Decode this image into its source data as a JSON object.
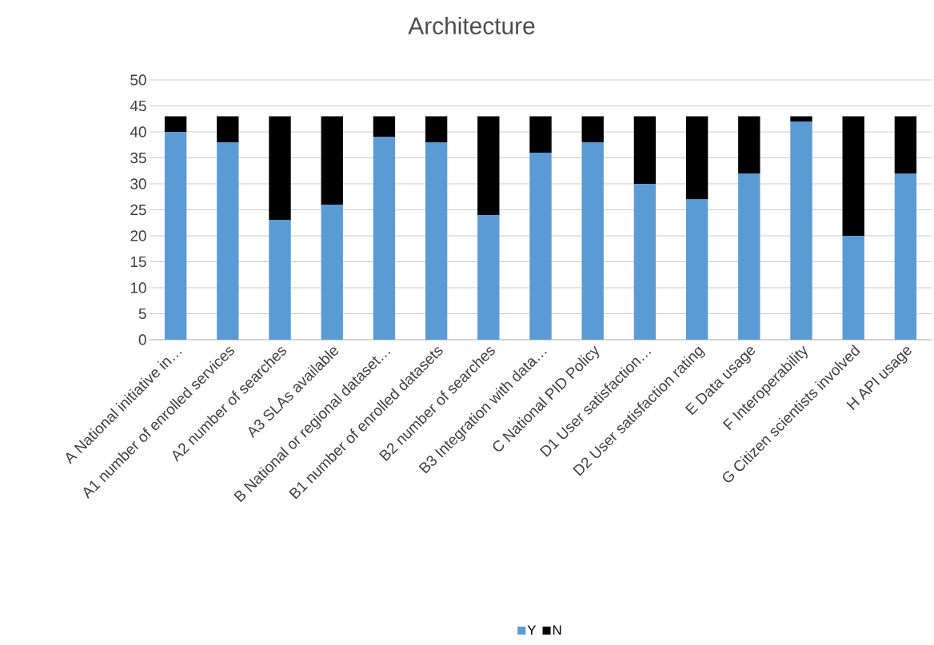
{
  "chart_data": {
    "type": "bar",
    "title": "Architecture",
    "stacked": true,
    "categories": [
      "A National initiative in…",
      "A1 number of enrolled services",
      "A2 number of searches",
      "A3 SLAs available",
      "B National or regional dataset…",
      "B1 number of enrolled datasets",
      "B2 number of searches",
      "B3 Integration with data…",
      "C National PID Policy",
      "D1 User satisfaction…",
      "D2 User satisfaction rating",
      "E Data usage",
      "F Interoperability",
      "G Citizen scientists involved",
      "H API usage"
    ],
    "series": [
      {
        "name": "Y",
        "color": "#5b9bd5",
        "values": [
          40,
          38,
          23,
          26,
          39,
          38,
          24,
          36,
          38,
          30,
          27,
          32,
          42,
          20,
          32
        ]
      },
      {
        "name": "N",
        "color": "#000000",
        "values": [
          3,
          5,
          20,
          17,
          4,
          5,
          19,
          7,
          5,
          13,
          16,
          11,
          1,
          23,
          11
        ]
      }
    ],
    "ylim": [
      0,
      50
    ],
    "yticks": [
      0,
      5,
      10,
      15,
      20,
      25,
      30,
      35,
      40,
      45,
      50
    ],
    "grid": "y",
    "legend": "bottom"
  }
}
